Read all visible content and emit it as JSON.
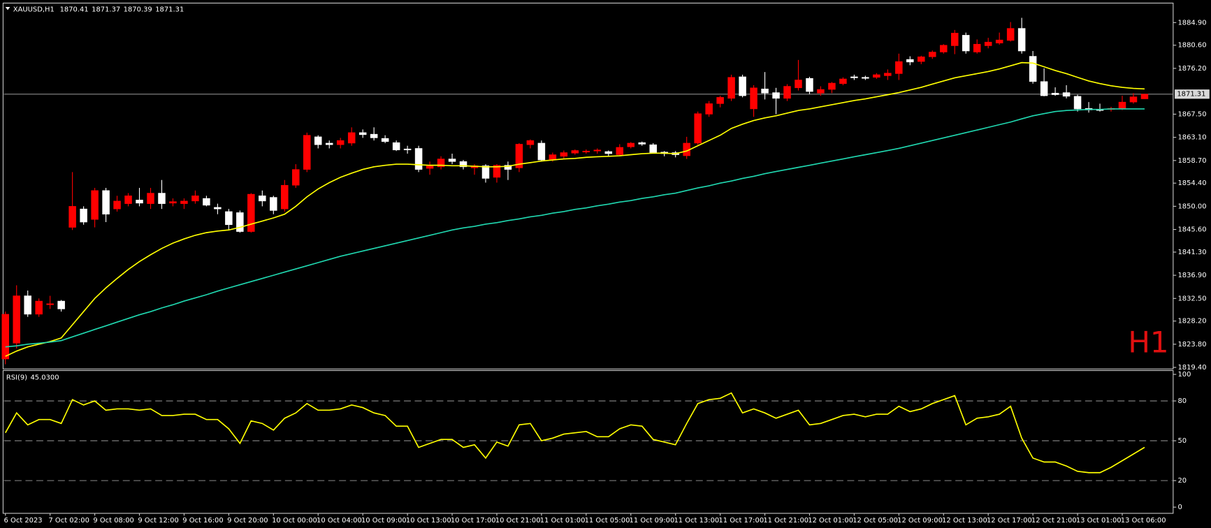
{
  "chart_data": {
    "type": "candlestick",
    "title": "XAUUSD,H1",
    "timeframe_label": "H1",
    "up_color": "#ff0000",
    "down_color": "#ffffff",
    "categories": [
      "6 Oct 2023",
      null,
      null,
      null,
      "7 Oct 02:00",
      null,
      null,
      null,
      "9 Oct 08:00",
      null,
      null,
      null,
      "9 Oct 12:00",
      null,
      null,
      null,
      "9 Oct 16:00",
      null,
      null,
      null,
      "9 Oct 20:00",
      null,
      null,
      null,
      "10 Oct 00:00",
      null,
      null,
      null,
      "10 Oct 04:00",
      null,
      null,
      null,
      "10 Oct 09:00",
      null,
      null,
      null,
      "10 Oct 13:00",
      null,
      null,
      null,
      "10 Oct 17:00",
      null,
      null,
      null,
      "10 Oct 21:00",
      null,
      null,
      null,
      "11 Oct 01:00",
      null,
      null,
      null,
      "11 Oct 05:00",
      null,
      null,
      null,
      "11 Oct 09:00",
      null,
      null,
      null,
      "11 Oct 13:00",
      null,
      null,
      null,
      "11 Oct 17:00",
      null,
      null,
      null,
      "11 Oct 21:00",
      null,
      null,
      null,
      "12 Oct 01:00",
      null,
      null,
      null,
      "12 Oct 05:00",
      null,
      null,
      null,
      "12 Oct 09:00",
      null,
      null,
      null,
      "12 Oct 13:00",
      null,
      null,
      null,
      "12 Oct 17:00",
      null,
      null,
      null,
      "12 Oct 21:00",
      null,
      null,
      null,
      "13 Oct 01:00",
      null,
      null,
      null,
      "13 Oct 06:00",
      null,
      null
    ],
    "open": [
      1821,
      1824,
      1833,
      1829.5,
      1831.3,
      1832,
      1846,
      1849.5,
      1847.5,
      1853,
      1849.5,
      1850.5,
      1851.2,
      1850.5,
      1852.5,
      1850.6,
      1850.5,
      1851,
      1851.5,
      1849.8,
      1849,
      1848.8,
      1845.2,
      1852,
      1851.7,
      1849.5,
      1854,
      1857,
      1863.2,
      1862,
      1861.7,
      1862,
      1864,
      1863.7,
      1862.9,
      1862.1,
      1860.9,
      1861,
      1857.2,
      1857.5,
      1859,
      1858.5,
      1857.3,
      1857.7,
      1855.5,
      1857.8,
      1857.3,
      1861.7,
      1862,
      1858.8,
      1859.5,
      1860.1,
      1860.3,
      1860.5,
      1860.4,
      1859.8,
      1861.3,
      1862.1,
      1861.7,
      1860.3,
      1860.2,
      1859.6,
      1862,
      1867.5,
      1869.5,
      1870.5,
      1874.6,
      1868.5,
      1872.3,
      1871.6,
      1870.5,
      1872.5,
      1874.3,
      1871.5,
      1872.2,
      1873.3,
      1874.6,
      1874.5,
      1874.5,
      1874.8,
      1875.2,
      1877.9,
      1877.5,
      1878.4,
      1879.3,
      1880.5,
      1882.5,
      1879.3,
      1880.5,
      1881,
      1881.5,
      1883.8,
      1878.5,
      1873.7,
      1871.5,
      1871.6,
      1870.9,
      1868.6,
      1868.4,
      1868.4,
      1868.6,
      1869.8,
      1870.41
    ],
    "high": [
      1830,
      1835,
      1834,
      1832.5,
      1833,
      1832.2,
      1856.5,
      1850,
      1853.5,
      1853.5,
      1852,
      1852.5,
      1853.5,
      1853.5,
      1855,
      1851.5,
      1851.5,
      1853,
      1852,
      1850.5,
      1849.5,
      1849.2,
      1852.5,
      1853,
      1852,
      1855,
      1858,
      1864,
      1863.5,
      1862.5,
      1863,
      1865,
      1864.6,
      1865,
      1863.5,
      1862.5,
      1861.5,
      1861.5,
      1858.5,
      1859.5,
      1860,
      1858.8,
      1858,
      1858,
      1858,
      1858.5,
      1862,
      1862.7,
      1862.5,
      1860.2,
      1860.6,
      1860.8,
      1860.8,
      1861,
      1860.6,
      1861.8,
      1862.2,
      1862.3,
      1862,
      1860.5,
      1860.5,
      1863.2,
      1868,
      1870,
      1871,
      1875,
      1875,
      1873,
      1875.5,
      1872.5,
      1873.2,
      1877.8,
      1874.6,
      1872.8,
      1873.6,
      1874.5,
      1875,
      1874.8,
      1875.3,
      1876,
      1879,
      1878.5,
      1878.6,
      1879.6,
      1880.8,
      1883.5,
      1883,
      1881.7,
      1882,
      1883,
      1885,
      1885.8,
      1879.5,
      1876.2,
      1872.6,
      1873,
      1871.2,
      1869.8,
      1869.5,
      1868.9,
      1871,
      1871.5,
      1871.37
    ],
    "low": [
      1820,
      1823,
      1829,
      1829,
      1830.5,
      1830,
      1845.5,
      1846.5,
      1846,
      1847,
      1849,
      1850,
      1850,
      1849.5,
      1849.5,
      1850,
      1849.5,
      1850.5,
      1850,
      1848.5,
      1845.5,
      1845,
      1845,
      1850,
      1848.5,
      1849,
      1853.5,
      1856.5,
      1861,
      1861,
      1861,
      1861.5,
      1863,
      1862.5,
      1862,
      1860.5,
      1860,
      1856.5,
      1856,
      1857,
      1858,
      1857,
      1856,
      1854.5,
      1854.5,
      1855,
      1856.5,
      1861,
      1858.5,
      1858.5,
      1859,
      1859.8,
      1860,
      1860,
      1859.5,
      1859.5,
      1861,
      1861.5,
      1860,
      1859.5,
      1859.3,
      1859,
      1861.7,
      1867,
      1868.8,
      1870,
      1870.7,
      1867,
      1870.3,
      1867.5,
      1870,
      1872,
      1871.3,
      1871,
      1871.5,
      1873,
      1874,
      1874,
      1874.2,
      1874,
      1874,
      1876.8,
      1877,
      1878,
      1879,
      1878.9,
      1879,
      1879,
      1880,
      1880.7,
      1881.3,
      1879,
      1873.3,
      1870.9,
      1871,
      1870.5,
      1868,
      1867.8,
      1868,
      1868,
      1868.3,
      1869.5,
      1870.39
    ],
    "close": [
      1829.5,
      1833,
      1829.5,
      1832,
      1831.5,
      1830.5,
      1850,
      1847,
      1853,
      1848.5,
      1851,
      1852,
      1850.6,
      1852.5,
      1850.5,
      1850.9,
      1851,
      1852,
      1850.2,
      1849.5,
      1846.5,
      1845.2,
      1852.3,
      1851,
      1849.2,
      1854,
      1857,
      1863.5,
      1861.7,
      1861.7,
      1862.5,
      1864,
      1863.6,
      1863,
      1862.3,
      1860.7,
      1860.7,
      1857,
      1857.8,
      1859,
      1858.5,
      1857.5,
      1857.7,
      1855.3,
      1857.8,
      1857,
      1861.8,
      1862.5,
      1858.8,
      1859.8,
      1860.2,
      1860.6,
      1860.5,
      1860.7,
      1860,
      1861.2,
      1862,
      1861.8,
      1860.2,
      1860,
      1859.8,
      1862,
      1867.6,
      1869.5,
      1870.7,
      1874.5,
      1871,
      1872.5,
      1871.5,
      1870.5,
      1872.8,
      1874,
      1871.8,
      1872.2,
      1873.4,
      1874.2,
      1874.4,
      1874.3,
      1875,
      1875.3,
      1877.5,
      1877.4,
      1878.4,
      1879.3,
      1880.6,
      1882.9,
      1879.5,
      1880.8,
      1881.2,
      1881.6,
      1883.8,
      1879.5,
      1873.7,
      1871,
      1871.2,
      1870.9,
      1868.5,
      1868.3,
      1868.2,
      1868.6,
      1869.8,
      1870.8,
      1871.31
    ],
    "series": [
      {
        "color": "#ffff00",
        "values": [
          1821.5,
          1822.5,
          1823.3,
          1823.8,
          1824.3,
          1825,
          1827.5,
          1830,
          1832.5,
          1834.5,
          1836.3,
          1838,
          1839.5,
          1840.8,
          1842,
          1843,
          1843.8,
          1844.5,
          1845,
          1845.3,
          1845.5,
          1846,
          1846.6,
          1847.2,
          1847.8,
          1848.5,
          1850,
          1851.8,
          1853.3,
          1854.5,
          1855.5,
          1856.3,
          1857,
          1857.5,
          1857.8,
          1858,
          1858,
          1857.9,
          1857.8,
          1857.8,
          1857.7,
          1857.7,
          1857.6,
          1857.5,
          1857.5,
          1857.6,
          1858,
          1858.3,
          1858.6,
          1858.8,
          1859,
          1859.1,
          1859.3,
          1859.4,
          1859.5,
          1859.6,
          1859.8,
          1860,
          1860.1,
          1860.1,
          1860,
          1860.5,
          1861.5,
          1862.5,
          1863.5,
          1864.8,
          1865.6,
          1866.3,
          1866.8,
          1867.2,
          1867.7,
          1868.2,
          1868.5,
          1868.9,
          1869.3,
          1869.7,
          1870.1,
          1870.4,
          1870.8,
          1871.2,
          1871.6,
          1872.1,
          1872.6,
          1873.2,
          1873.8,
          1874.4,
          1874.8,
          1875.2,
          1875.6,
          1876.1,
          1876.7,
          1877.3,
          1877.2,
          1876.5,
          1875.8,
          1875.2,
          1874.5,
          1873.8,
          1873.3,
          1872.9,
          1872.6,
          1872.4,
          1872.3
        ]
      },
      {
        "color": "#20d8b0",
        "values": [
          1823.3,
          1823.5,
          1823.8,
          1824,
          1824.2,
          1824.5,
          1825.2,
          1825.9,
          1826.6,
          1827.3,
          1828,
          1828.7,
          1829.4,
          1830,
          1830.7,
          1831.3,
          1832,
          1832.6,
          1833.2,
          1833.9,
          1834.5,
          1835.1,
          1835.7,
          1836.3,
          1836.9,
          1837.5,
          1838.1,
          1838.7,
          1839.3,
          1839.9,
          1840.5,
          1841,
          1841.5,
          1842,
          1842.5,
          1843,
          1843.5,
          1844,
          1844.5,
          1845,
          1845.5,
          1845.9,
          1846.2,
          1846.6,
          1846.9,
          1847.3,
          1847.6,
          1848,
          1848.3,
          1848.7,
          1849,
          1849.4,
          1849.7,
          1850.1,
          1850.4,
          1850.8,
          1851.1,
          1851.5,
          1851.8,
          1852.2,
          1852.5,
          1853,
          1853.5,
          1853.9,
          1854.4,
          1854.8,
          1855.3,
          1855.7,
          1856.2,
          1856.6,
          1857,
          1857.4,
          1857.8,
          1858.2,
          1858.6,
          1859,
          1859.4,
          1859.8,
          1860.2,
          1860.6,
          1861,
          1861.5,
          1862,
          1862.5,
          1863,
          1863.5,
          1864,
          1864.5,
          1865,
          1865.5,
          1866,
          1866.6,
          1867.2,
          1867.6,
          1868,
          1868.2,
          1868.3,
          1868.4,
          1868.4,
          1868.5,
          1868.5,
          1868.5,
          1868.5
        ]
      }
    ],
    "ylim": [
      1819.1,
      1888.6
    ],
    "yticks": [
      {
        "value": 1884.9,
        "label": "1884.90"
      },
      {
        "value": 1880.6,
        "label": "1880.60"
      },
      {
        "value": 1876.2,
        "label": "1876.20"
      },
      {
        "value": 1867.5,
        "label": "1867.50"
      },
      {
        "value": 1863.1,
        "label": "1863.10"
      },
      {
        "value": 1858.7,
        "label": "1858.70"
      },
      {
        "value": 1854.4,
        "label": "1854.40"
      },
      {
        "value": 1850,
        "label": "1850.00"
      },
      {
        "value": 1845.6,
        "label": "1845.60"
      },
      {
        "value": 1841.3,
        "label": "1841.30"
      },
      {
        "value": 1836.9,
        "label": "1836.90"
      },
      {
        "value": 1832.5,
        "label": "1832.50"
      },
      {
        "value": 1828.2,
        "label": "1828.20"
      },
      {
        "value": 1823.8,
        "label": "1823.80"
      },
      {
        "value": 1819.4,
        "label": "1819.40"
      }
    ],
    "rsi": {
      "title": "RSI(9)",
      "last_label": "45.0300",
      "color": "#ffff00",
      "values": [
        56,
        71,
        62,
        66,
        66,
        63,
        81,
        77,
        80,
        73,
        74,
        74,
        73,
        74,
        69,
        69,
        70,
        70,
        66,
        66,
        59,
        48,
        65,
        63,
        58,
        67,
        71,
        78,
        73,
        73,
        74,
        77,
        75,
        71,
        69,
        61,
        61,
        45,
        48,
        51,
        51,
        45,
        47,
        37,
        49,
        46,
        62,
        63,
        50,
        52,
        55,
        56,
        57,
        53,
        53,
        59,
        62,
        61,
        51,
        49,
        47,
        63,
        78,
        81,
        82,
        86,
        71,
        74,
        71,
        67,
        70,
        73,
        62,
        63,
        66,
        69,
        70,
        68,
        70,
        70,
        76,
        72,
        74,
        78,
        81,
        84,
        62,
        67,
        68,
        70,
        76,
        52,
        37,
        34,
        34,
        31,
        27,
        26,
        26,
        30,
        35,
        40,
        45.03
      ],
      "ylim": [
        0,
        100
      ],
      "yticks": [
        0,
        20,
        50,
        80,
        100
      ]
    }
  }
}
